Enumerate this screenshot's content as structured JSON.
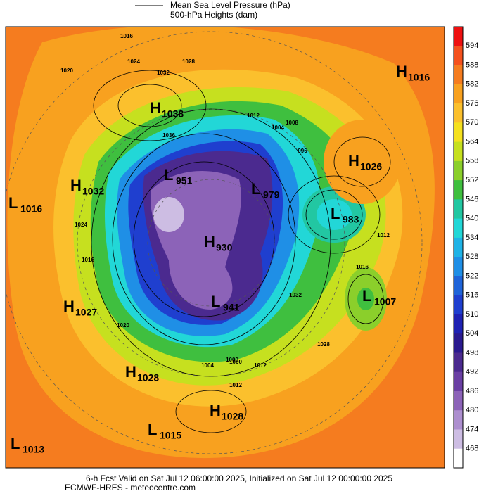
{
  "legend": {
    "line1": "Mean Sea Level Pressure (hPa)",
    "line2": "500-hPa Heights (dam)"
  },
  "colorbar": {
    "ticks": [
      "594",
      "588",
      "582",
      "576",
      "570",
      "564",
      "558",
      "552",
      "546",
      "540",
      "534",
      "528",
      "522",
      "516",
      "510",
      "504",
      "498",
      "492",
      "486",
      "480",
      "474",
      "468"
    ],
    "colors": [
      "#ee1111",
      "#f4511e",
      "#f57c1f",
      "#f8a11f",
      "#fbc02d",
      "#f5e11f",
      "#c6e01f",
      "#8bcf2b",
      "#3fbf3f",
      "#22c7a2",
      "#22d7d7",
      "#1fb3e6",
      "#1f8fe6",
      "#1f64d9",
      "#1f3fcf",
      "#1f22b3",
      "#2a1a8f",
      "#4b2a8f",
      "#6a3fa3",
      "#8c63b8",
      "#ad8fcf",
      "#cdbde3",
      "#ffffff"
    ]
  },
  "centers": [
    {
      "letter": "H",
      "value": "1038"
    },
    {
      "letter": "H",
      "value": "1016"
    },
    {
      "letter": "L",
      "value": "951"
    },
    {
      "letter": "L",
      "value": "979"
    },
    {
      "letter": "H",
      "value": "1032"
    },
    {
      "letter": "L",
      "value": "1016"
    },
    {
      "letter": "H",
      "value": "1026"
    },
    {
      "letter": "L",
      "value": "983"
    },
    {
      "letter": "H",
      "value": "930"
    },
    {
      "letter": "H",
      "value": "1027"
    },
    {
      "letter": "L",
      "value": "941"
    },
    {
      "letter": "L",
      "value": "1007"
    },
    {
      "letter": "H",
      "value": "1028"
    },
    {
      "letter": "H",
      "value": "1028"
    },
    {
      "letter": "L",
      "value": "1015"
    },
    {
      "letter": "L",
      "value": "1013"
    }
  ],
  "contour_labels": [
    "1016",
    "1020",
    "1024",
    "1028",
    "1032",
    "1036",
    "1012",
    "1004",
    "996",
    "1008",
    "1000",
    "1012",
    "1024",
    "1020",
    "1016",
    "1016",
    "1028",
    "1032",
    "1012",
    "1004",
    "1000",
    "1012"
  ],
  "footer": {
    "line1": "6-h Fcst Valid on Sat Jul 12 06:00:00 2025, Initialized on Sat Jul 12 00:00:00 2025",
    "line2": "ECMWF-HRES - meteocentre.com"
  }
}
